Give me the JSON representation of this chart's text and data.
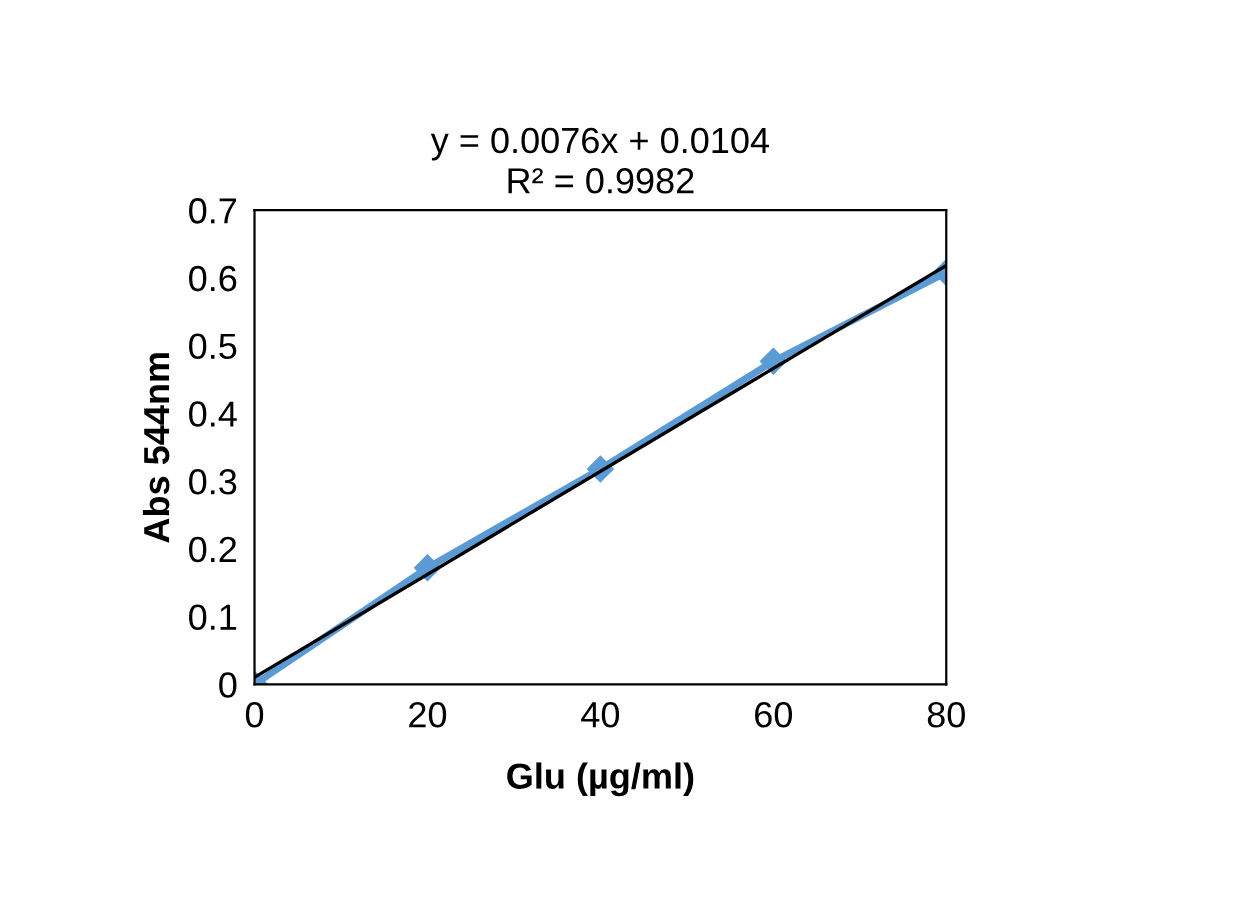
{
  "chart_data": {
    "type": "line",
    "xlabel": "Glu (µg/ml)",
    "ylabel": "Abs 544nm",
    "annotations": [
      "y = 0.0076x + 0.0104",
      "R² = 0.9982"
    ],
    "x": [
      0,
      20,
      40,
      60,
      80
    ],
    "series": [
      {
        "color": "#5b9bd5",
        "values": [
          0,
          0.172,
          0.318,
          0.477,
          0.608
        ],
        "marker": "diamond"
      },
      {
        "type": "line",
        "color": "#000000",
        "x": [
          0,
          80
        ],
        "values": [
          0.0104,
          0.6184
        ],
        "marker": "none"
      }
    ],
    "xlim": [
      0,
      80
    ],
    "xticks": [
      0,
      20,
      40,
      60,
      80
    ],
    "ylim": [
      0,
      0.7
    ],
    "yticks": [
      0,
      0.1,
      0.2,
      0.3,
      0.4,
      0.5,
      0.6,
      0.7
    ],
    "grid": false,
    "legend": false,
    "line_style": "solid"
  }
}
